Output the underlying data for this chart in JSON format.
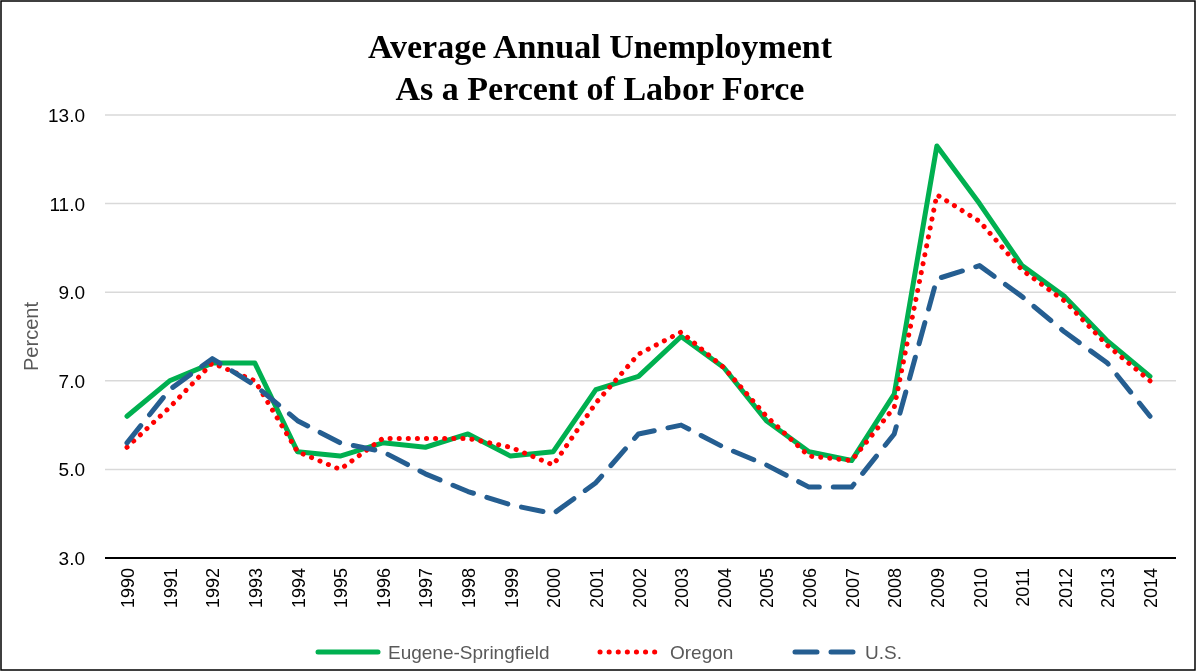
{
  "chart_data": {
    "type": "line",
    "title": "Average Annual Unemployment\nAs a Percent of Labor Force",
    "ylabel": "Percent",
    "categories": [
      "1990",
      "1991",
      "1992",
      "1993",
      "1994",
      "1995",
      "1996",
      "1997",
      "1998",
      "1999",
      "2000",
      "2001",
      "2002",
      "2003",
      "2004",
      "2005",
      "2006",
      "2007",
      "2008",
      "2009",
      "2010",
      "2011",
      "2012",
      "2013",
      "2014"
    ],
    "series": [
      {
        "name": "Eugene-Springfield",
        "color": "#00b050",
        "line_style": "solid",
        "values": [
          6.2,
          7.0,
          7.4,
          7.4,
          5.4,
          5.3,
          5.6,
          5.5,
          5.8,
          5.3,
          5.4,
          6.8,
          7.1,
          8.0,
          7.3,
          6.1,
          5.4,
          5.2,
          6.7,
          12.3,
          11.0,
          9.6,
          8.9,
          7.9,
          7.1
        ]
      },
      {
        "name": "Oregon",
        "color": "#ff0000",
        "line_style": "dotted",
        "values": [
          5.5,
          6.4,
          7.4,
          7.0,
          5.4,
          5.0,
          5.7,
          5.7,
          5.7,
          5.5,
          5.1,
          6.5,
          7.6,
          8.1,
          7.3,
          6.2,
          5.3,
          5.2,
          6.4,
          11.2,
          10.6,
          9.5,
          8.8,
          7.8,
          7.0
        ]
      },
      {
        "name": "U.S.",
        "color": "#255e91",
        "line_style": "dashed",
        "values": [
          5.6,
          6.8,
          7.5,
          6.9,
          6.1,
          5.6,
          5.4,
          4.9,
          4.5,
          4.2,
          4.0,
          4.7,
          5.8,
          6.0,
          5.5,
          5.1,
          4.6,
          4.6,
          5.8,
          9.3,
          9.6,
          8.9,
          8.1,
          7.4,
          6.2
        ]
      }
    ],
    "ylim": [
      3,
      13
    ],
    "yticks": [
      {
        "value": 3,
        "label": "3.0"
      },
      {
        "value": 5,
        "label": "5.0"
      },
      {
        "value": 7,
        "label": "7.0"
      },
      {
        "value": 9,
        "label": "9.0"
      },
      {
        "value": 11,
        "label": "11.0"
      },
      {
        "value": 13,
        "label": "13.0"
      }
    ],
    "grid": "y",
    "legend": "bottom",
    "marker": "none"
  }
}
